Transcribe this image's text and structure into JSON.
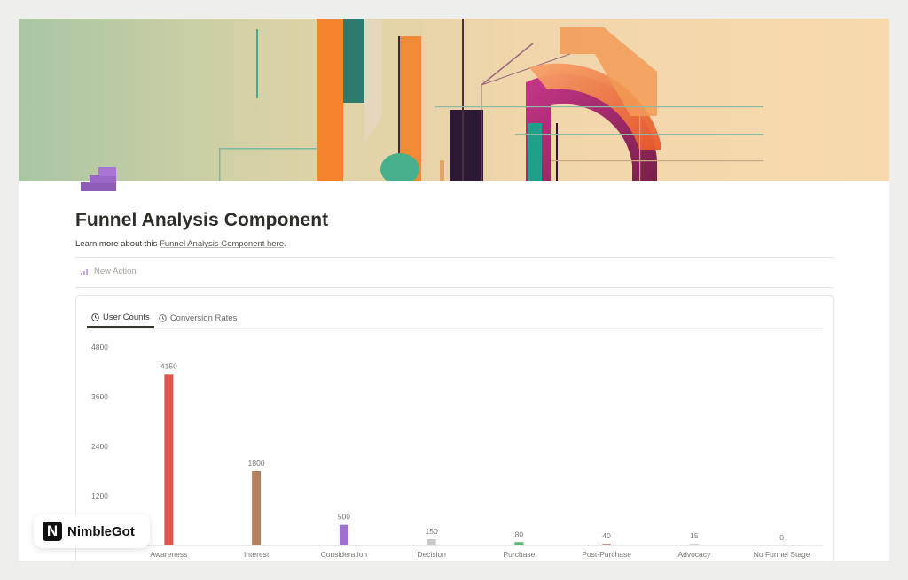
{
  "page": {
    "title": "Funnel Analysis Component",
    "subtitle_prefix": "Learn more about this ",
    "subtitle_link": "Funnel Analysis Component here",
    "subtitle_suffix": "."
  },
  "toolbar": {
    "new_action_label": "New Action"
  },
  "tabs": [
    {
      "label": "User Counts",
      "active": true
    },
    {
      "label": "Conversion Rates",
      "active": false
    }
  ],
  "chart_data": {
    "type": "bar",
    "categories": [
      "Awareness",
      "Interest",
      "Consideration",
      "Decision",
      "Purchase",
      "Post-Purchase",
      "Advocacy",
      "No Funnel Stage"
    ],
    "values": [
      4150,
      1800,
      500,
      150,
      80,
      40,
      15,
      0
    ],
    "colors": [
      "#e0554f",
      "#b3805d",
      "#a070d0",
      "#c8c8c8",
      "#5ab86e",
      "#c49a9a",
      "#d0d0d0",
      "#d0d0d0"
    ],
    "yticks": [
      0,
      1200,
      2400,
      3600,
      4800
    ],
    "ylim": [
      0,
      4800
    ],
    "xlabel": "",
    "ylabel": ""
  },
  "badge": {
    "logo_letter": "N",
    "name": "NimbleGot"
  }
}
